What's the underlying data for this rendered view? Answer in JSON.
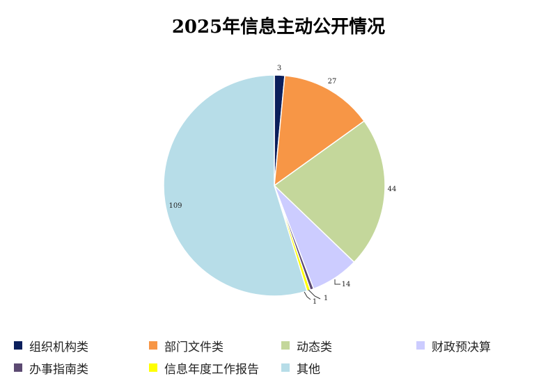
{
  "chart_data": {
    "type": "pie",
    "title": "2025年信息主动公开情况",
    "categories": [
      "组织机构类",
      "部门文件类",
      "动态类",
      "财政预决算",
      "办事指南类",
      "信息年度工作报告",
      "其他"
    ],
    "values": [
      3,
      27,
      44,
      14,
      1,
      1,
      109
    ],
    "colors": [
      "#0b1f5c",
      "#f79646",
      "#c4d79b",
      "#ccccff",
      "#5c4a72",
      "#ffff00",
      "#b7dde8"
    ],
    "legend_position": "bottom"
  }
}
